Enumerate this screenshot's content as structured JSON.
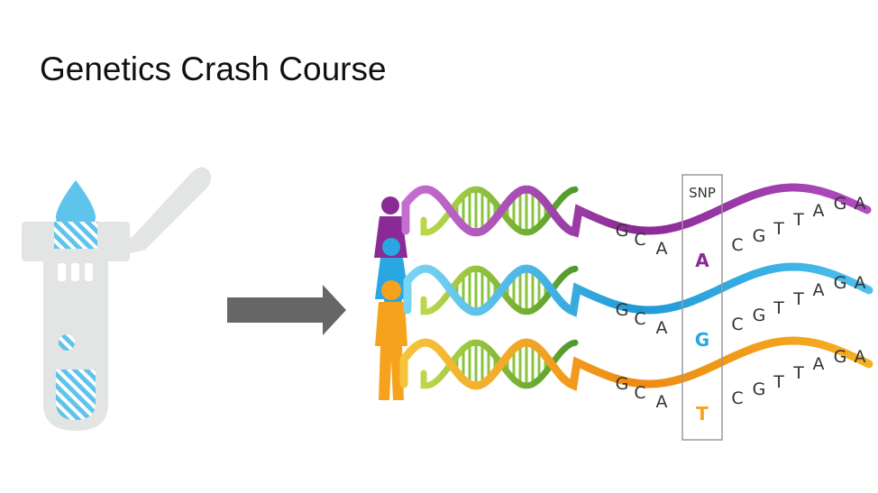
{
  "slide": {
    "title": "Genetics Crash Course"
  },
  "colors": {
    "tube": "#e3e4e4",
    "sample": "#5ec4ec",
    "arrow": "#666666",
    "purple": "#8a2a94",
    "blue": "#2aa7e0",
    "orange": "#f7a21c",
    "green": "#7cb52f",
    "snp_box": "#9a9a9a"
  },
  "snp": {
    "label": "SNP"
  },
  "sequence": {
    "left_bases": [
      "G",
      "C",
      "A"
    ],
    "right_bases": [
      "C",
      "G",
      "T",
      "T",
      "A",
      "G",
      "A"
    ]
  },
  "strands": [
    {
      "person": "purple-person",
      "color": "#8a2a94",
      "snp_base": "A"
    },
    {
      "person": "blue-person",
      "color": "#2aa7e0",
      "snp_base": "G"
    },
    {
      "person": "orange-person",
      "color": "#f7a21c",
      "snp_base": "T"
    }
  ]
}
